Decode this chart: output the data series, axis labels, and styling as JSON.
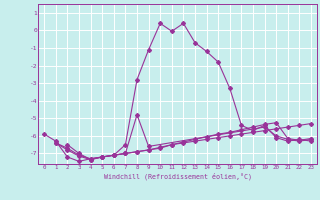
{
  "background_color": "#c8eeed",
  "grid_color": "#ffffff",
  "line_color": "#993399",
  "x_min": -0.5,
  "x_max": 23.5,
  "y_min": -7.6,
  "y_max": 1.5,
  "xlabel": "Windchill (Refroidissement éolien,°C)",
  "yticks": [
    1,
    0,
    -1,
    -2,
    -3,
    -4,
    -5,
    -6,
    -7
  ],
  "xticks": [
    0,
    1,
    2,
    3,
    4,
    5,
    6,
    7,
    8,
    9,
    10,
    11,
    12,
    13,
    14,
    15,
    16,
    17,
    18,
    19,
    20,
    21,
    22,
    23
  ],
  "series1_x": [
    0,
    1,
    2,
    3,
    4,
    5,
    6,
    7,
    8,
    9,
    10,
    11,
    12,
    13,
    14,
    15,
    16,
    17,
    18,
    19,
    20,
    21,
    22,
    23
  ],
  "series1_y": [
    -5.9,
    -6.3,
    -7.2,
    -7.45,
    -7.3,
    -7.2,
    -7.1,
    -6.5,
    -2.8,
    -1.1,
    0.4,
    -0.05,
    0.4,
    -0.7,
    -1.2,
    -1.8,
    -3.3,
    -5.4,
    -5.7,
    -5.4,
    -6.1,
    -6.3,
    -6.2,
    -6.3
  ],
  "series2_x": [
    2,
    3,
    4,
    5,
    6,
    7,
    8,
    9,
    19,
    20,
    21,
    22,
    23
  ],
  "series2_y": [
    -6.5,
    -7.0,
    -7.35,
    -7.2,
    -7.1,
    -7.0,
    -4.8,
    -6.6,
    -5.5,
    -6.0,
    -6.2,
    -6.3,
    -6.2
  ],
  "series3_x": [
    1,
    2,
    3,
    4,
    5,
    6,
    7,
    8,
    9,
    10,
    11,
    12,
    13,
    14,
    15,
    16,
    17,
    18,
    19,
    20,
    21,
    22,
    23
  ],
  "series3_y": [
    -6.4,
    -6.7,
    -7.1,
    -7.3,
    -7.2,
    -7.1,
    -7.0,
    -6.9,
    -6.8,
    -6.7,
    -6.5,
    -6.4,
    -6.3,
    -6.2,
    -6.1,
    -6.0,
    -5.9,
    -5.8,
    -5.7,
    -5.6,
    -5.5,
    -5.4,
    -5.3
  ],
  "series4_x": [
    1,
    2,
    3,
    4,
    5,
    6,
    7,
    8,
    9,
    10,
    11,
    12,
    13,
    14,
    15,
    16,
    17,
    18,
    19,
    20,
    21,
    22,
    23
  ],
  "series4_y": [
    -6.4,
    -6.8,
    -7.15,
    -7.35,
    -7.2,
    -7.1,
    -7.0,
    -6.9,
    -6.8,
    -6.65,
    -6.5,
    -6.35,
    -6.2,
    -6.05,
    -5.9,
    -5.8,
    -5.65,
    -5.5,
    -5.35,
    -5.25,
    -6.15,
    -6.25,
    -6.15
  ]
}
